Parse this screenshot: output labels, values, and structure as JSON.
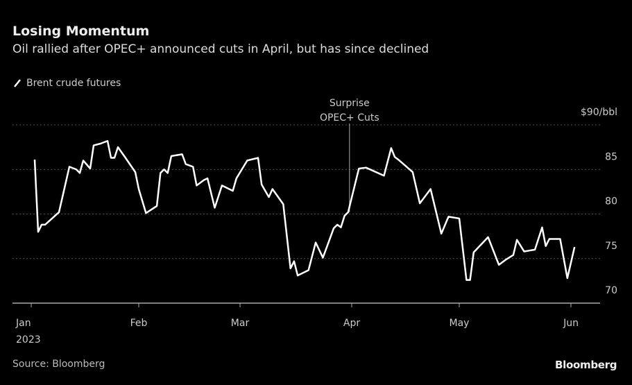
{
  "chart_data": {
    "type": "line",
    "title": "Losing Momentum",
    "subtitle": "Oil rallied after OPEC+ announced cuts in April, but has since declined",
    "xlabel": "",
    "ylabel": "",
    "y_unit_label": "$90/bbl",
    "ylim": [
      70,
      90
    ],
    "yticks": [
      {
        "value": 90,
        "label": "$90/bbl"
      },
      {
        "value": 85,
        "label": "85"
      },
      {
        "value": 80,
        "label": "80"
      },
      {
        "value": 75,
        "label": "75"
      },
      {
        "value": 70,
        "label": "70"
      }
    ],
    "xticks": [
      {
        "date": "2023-01-01",
        "label": "Jan",
        "sublabel": "2023"
      },
      {
        "date": "2023-02-01",
        "label": "Feb"
      },
      {
        "date": "2023-03-01",
        "label": "Mar"
      },
      {
        "date": "2023-04-01",
        "label": "Apr"
      },
      {
        "date": "2023-05-01",
        "label": "May"
      },
      {
        "date": "2023-06-01",
        "label": "Jun"
      }
    ],
    "grid": true,
    "legend_position": "top-left",
    "series": [
      {
        "name": "Brent crude futures",
        "color": "#ffffff",
        "x": [
          "2023-01-02",
          "2023-01-03",
          "2023-01-04",
          "2023-01-05",
          "2023-01-09",
          "2023-01-12",
          "2023-01-14",
          "2023-01-15",
          "2023-01-16",
          "2023-01-18",
          "2023-01-19",
          "2023-01-21",
          "2023-01-23",
          "2023-01-24",
          "2023-01-25",
          "2023-01-26",
          "2023-01-28",
          "2023-01-31",
          "2023-02-01",
          "2023-02-03",
          "2023-02-06",
          "2023-02-07",
          "2023-02-08",
          "2023-02-09",
          "2023-02-10",
          "2023-02-13",
          "2023-02-14",
          "2023-02-16",
          "2023-02-17",
          "2023-02-19",
          "2023-02-20",
          "2023-02-22",
          "2023-02-24",
          "2023-02-27",
          "2023-02-28",
          "2023-03-03",
          "2023-03-06",
          "2023-03-07",
          "2023-03-09",
          "2023-03-10",
          "2023-03-13",
          "2023-03-15",
          "2023-03-16",
          "2023-03-17",
          "2023-03-20",
          "2023-03-22",
          "2023-03-24",
          "2023-03-27",
          "2023-03-28",
          "2023-03-29",
          "2023-03-30",
          "2023-03-31",
          "2023-04-03",
          "2023-04-05",
          "2023-04-10",
          "2023-04-12",
          "2023-04-13",
          "2023-04-14",
          "2023-04-18",
          "2023-04-20",
          "2023-04-23",
          "2023-04-26",
          "2023-04-28",
          "2023-05-01",
          "2023-05-03",
          "2023-05-04",
          "2023-05-05",
          "2023-05-09",
          "2023-05-12",
          "2023-05-14",
          "2023-05-16",
          "2023-05-17",
          "2023-05-19",
          "2023-05-22",
          "2023-05-24",
          "2023-05-25",
          "2023-05-26",
          "2023-05-29",
          "2023-05-31",
          "2023-06-02"
        ],
        "values": [
          86.1,
          78.0,
          78.8,
          78.8,
          80.2,
          85.3,
          85.0,
          84.6,
          86.0,
          85.1,
          87.7,
          87.9,
          88.2,
          86.3,
          86.3,
          87.5,
          86.4,
          84.7,
          82.8,
          80.1,
          80.9,
          84.6,
          85.0,
          84.6,
          86.5,
          86.7,
          85.6,
          85.3,
          83.2,
          83.8,
          84.0,
          80.7,
          83.2,
          82.6,
          84.0,
          86.0,
          86.3,
          83.3,
          81.9,
          82.8,
          81.1,
          73.9,
          74.7,
          73.1,
          73.7,
          76.8,
          75.1,
          78.4,
          78.8,
          78.5,
          79.8,
          80.2,
          85.1,
          85.2,
          84.3,
          87.4,
          86.4,
          86.1,
          84.7,
          81.2,
          82.8,
          77.8,
          79.7,
          79.5,
          72.6,
          72.6,
          75.7,
          77.4,
          74.3,
          74.9,
          75.4,
          77.1,
          75.8,
          76.0,
          78.5,
          76.4,
          77.2,
          77.2,
          72.8,
          76.3
        ]
      }
    ],
    "annotations": [
      {
        "date": "2023-03-31",
        "value": 80.2,
        "line1": "Surprise",
        "line2": "OPEC+ Cuts"
      }
    ]
  },
  "source": "Source: Bloomberg",
  "logo_text": "Bloomberg",
  "colors": {
    "background": "#000000",
    "line": "#ffffff",
    "grid": "#555555",
    "text": "#dddddd"
  }
}
